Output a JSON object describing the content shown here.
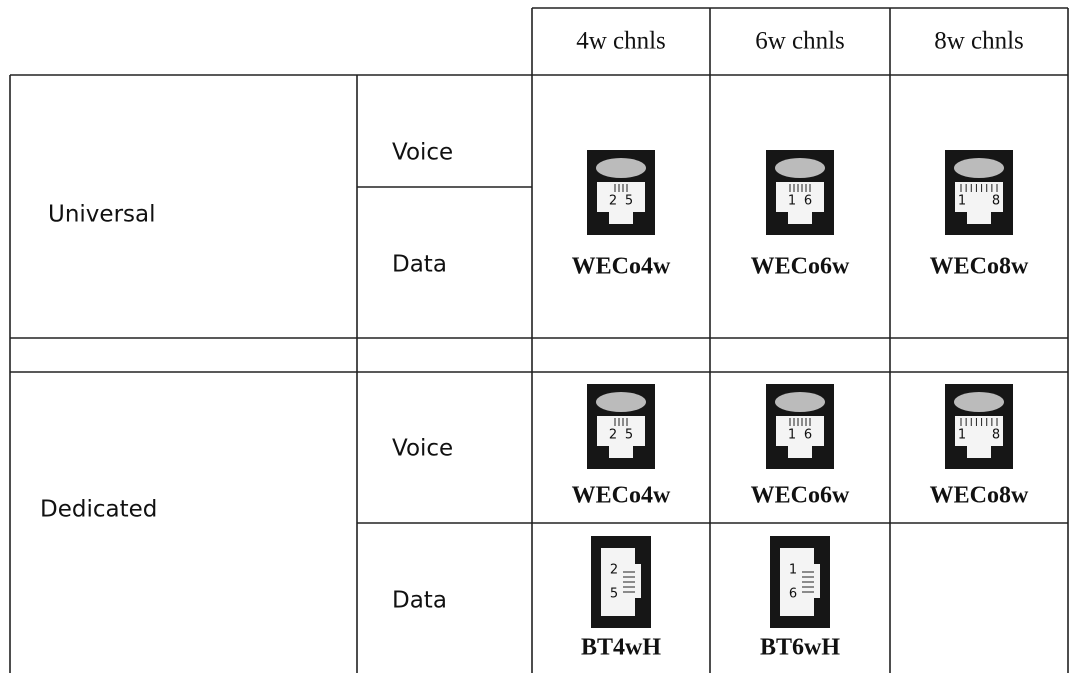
{
  "header": {
    "columns": [
      "4w chnls",
      "6w chnls",
      "8w chnls"
    ]
  },
  "universal": {
    "label": "Universal",
    "types": [
      "Voice",
      "Data"
    ],
    "connectors": [
      {
        "name": "WECo4w",
        "pins": [
          "2",
          "5"
        ]
      },
      {
        "name": "WECo6w",
        "pins": [
          "1",
          "6"
        ]
      },
      {
        "name": "WECo8w",
        "pins": [
          "1",
          "8"
        ]
      }
    ]
  },
  "dedicated": {
    "label": "Dedicated",
    "types": [
      "Voice",
      "Data"
    ],
    "voice_connectors": [
      {
        "name": "WECo4w",
        "pins": [
          "2",
          "5"
        ]
      },
      {
        "name": "WECo6w",
        "pins": [
          "1",
          "6"
        ]
      },
      {
        "name": "WECo8w",
        "pins": [
          "1",
          "8"
        ]
      }
    ],
    "data_connectors": [
      {
        "name": "BT4wH",
        "pins": [
          "2",
          "5"
        ]
      },
      {
        "name": "BT6wH",
        "pins": [
          "1",
          "6"
        ]
      }
    ]
  }
}
